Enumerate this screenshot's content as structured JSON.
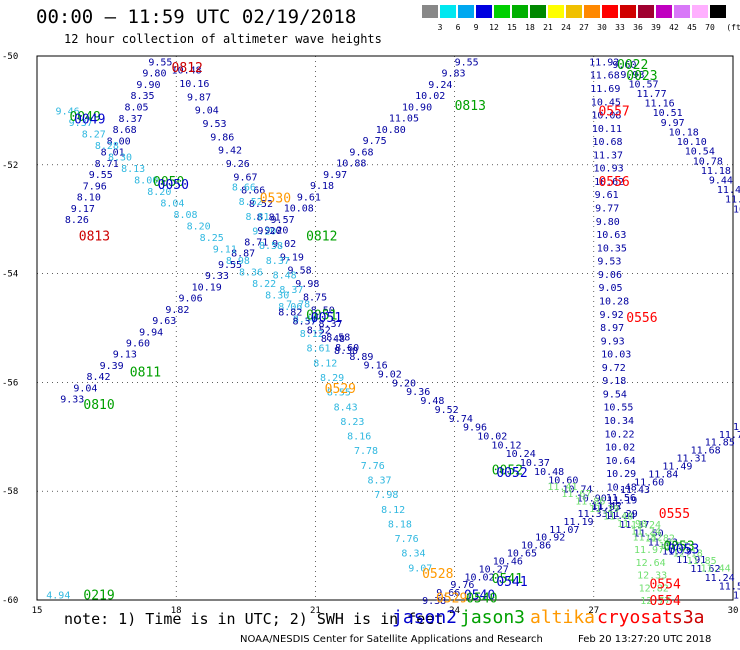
{
  "header": {
    "title": "00:00 – 11:59 UTC 02/19/2018",
    "subtitle": "12 hour collection of altimeter wave heights"
  },
  "legend": {
    "unit": "(ft)",
    "bins": [
      {
        "label": "3",
        "color": "#888888"
      },
      {
        "label": "6",
        "color": "#00e8f0"
      },
      {
        "label": "9",
        "color": "#00a8f0"
      },
      {
        "label": "12",
        "color": "#0000e0"
      },
      {
        "label": "15",
        "color": "#00d000"
      },
      {
        "label": "18",
        "color": "#00b000"
      },
      {
        "label": "21",
        "color": "#008800"
      },
      {
        "label": "24",
        "color": "#ffff00"
      },
      {
        "label": "27",
        "color": "#f0c000"
      },
      {
        "label": "30",
        "color": "#ff8800"
      },
      {
        "label": "33",
        "color": "#ff0000"
      },
      {
        "label": "36",
        "color": "#d00000"
      },
      {
        "label": "39",
        "color": "#a00030"
      },
      {
        "label": "42",
        "color": "#c000c0"
      },
      {
        "label": "45",
        "color": "#d878f8"
      },
      {
        "label": "70",
        "color": "#ffb0ff"
      },
      {
        "label": "",
        "color": "#000000"
      }
    ]
  },
  "chart_data": {
    "type": "map",
    "xlim": [
      15,
      30
    ],
    "ylim": [
      -60,
      -50
    ],
    "x_ticks": [
      "15",
      "18",
      "21",
      "24",
      "27",
      "30"
    ],
    "y_ticks": [
      "-50",
      "-52",
      "-54",
      "-56",
      "-58",
      "-60"
    ],
    "colors": {
      "jason2": "#0000cc",
      "jason3": "#00a000",
      "altika": "#ff9900",
      "cryosat": "#ff0000",
      "s3a": "#cc0000",
      "light": "#30b8e0",
      "pale": "#70e070",
      "dark": "#0000a0"
    },
    "times": [
      {
        "label": "0812",
        "x": 17.9,
        "y": -50.2,
        "color": "s3a"
      },
      {
        "label": "0049",
        "x": 15.7,
        "y": -51.1,
        "color": "jason3"
      },
      {
        "label": "0049",
        "x": 15.8,
        "y": -51.15,
        "color": "jason2"
      },
      {
        "label": "0050",
        "x": 17.5,
        "y": -52.3,
        "color": "jason3"
      },
      {
        "label": "0050",
        "x": 17.6,
        "y": -52.35,
        "color": "jason2"
      },
      {
        "label": "0813",
        "x": 15.9,
        "y": -53.3,
        "color": "s3a"
      },
      {
        "label": "0530",
        "x": 19.8,
        "y": -52.6,
        "color": "altika"
      },
      {
        "label": "0812",
        "x": 20.8,
        "y": -53.3,
        "color": "jason3"
      },
      {
        "label": "0051",
        "x": 20.8,
        "y": -54.75,
        "color": "jason3"
      },
      {
        "label": "0051",
        "x": 20.9,
        "y": -54.8,
        "color": "jason2"
      },
      {
        "label": "0811",
        "x": 17.0,
        "y": -55.8,
        "color": "jason3"
      },
      {
        "label": "0810",
        "x": 16.0,
        "y": -56.4,
        "color": "jason3"
      },
      {
        "label": "0529",
        "x": 21.2,
        "y": -56.1,
        "color": "altika"
      },
      {
        "label": "0813",
        "x": 24.0,
        "y": -50.9,
        "color": "jason3"
      },
      {
        "label": "0022",
        "x": 27.5,
        "y": -50.15,
        "color": "jason3"
      },
      {
        "label": "0023",
        "x": 27.7,
        "y": -50.35,
        "color": "jason3"
      },
      {
        "label": "0557",
        "x": 27.1,
        "y": -51.0,
        "color": "cryosat"
      },
      {
        "label": "0556",
        "x": 27.1,
        "y": -52.3,
        "color": "cryosat"
      },
      {
        "label": "0556",
        "x": 27.7,
        "y": -54.8,
        "color": "cryosat"
      },
      {
        "label": "0052",
        "x": 24.8,
        "y": -57.6,
        "color": "jason3"
      },
      {
        "label": "0052",
        "x": 24.9,
        "y": -57.65,
        "color": "jason2"
      },
      {
        "label": "0555",
        "x": 28.4,
        "y": -58.4,
        "color": "cryosat"
      },
      {
        "label": "0053",
        "x": 28.5,
        "y": -59.0,
        "color": "jason3"
      },
      {
        "label": "0053",
        "x": 28.6,
        "y": -59.05,
        "color": "jason2"
      },
      {
        "label": "0528",
        "x": 23.3,
        "y": -59.5,
        "color": "altika"
      },
      {
        "label": "0541",
        "x": 24.8,
        "y": -59.6,
        "color": "jason3"
      },
      {
        "label": "0541",
        "x": 24.9,
        "y": -59.65,
        "color": "jason2"
      },
      {
        "label": "0540",
        "x": 24.2,
        "y": -59.9,
        "color": "jason2"
      },
      {
        "label": "0540",
        "x": 24.25,
        "y": -59.95,
        "color": "jason3"
      },
      {
        "label": "0554",
        "x": 28.2,
        "y": -59.7,
        "color": "cryosat"
      },
      {
        "label": "0554",
        "x": 28.2,
        "y": -60.0,
        "color": "cryosat"
      },
      {
        "label": "0219",
        "x": 16.0,
        "y": -59.9,
        "color": "jason3"
      },
      {
        "label": "0529",
        "x": 23.6,
        "y": -59.95,
        "color": "altika"
      }
    ],
    "passes": [
      {
        "color": "dark",
        "from": [
          17.4,
          -50.1
        ],
        "to": [
          15.6,
          -53.0
        ],
        "values": [
          "9.55",
          "9.80",
          "9.90",
          "8.35",
          "8.05",
          "8.37",
          "8.68",
          "8.00",
          "8.01",
          "8.71",
          "9.55",
          "7.96",
          "8.10",
          "9.17",
          "8.26"
        ]
      },
      {
        "color": "dark",
        "from": [
          17.9,
          -50.25
        ],
        "to": [
          21.4,
          -55.4
        ],
        "values": [
          "10.48",
          "10.16",
          "9.87",
          "9.04",
          "9.53",
          "9.86",
          "9.42",
          "9.26",
          "9.67",
          "8.66",
          "8.52",
          "8.81",
          "9.20",
          "9.02",
          "9.19",
          "9.58",
          "9.98",
          "8.75",
          "8.50",
          "8.37",
          "8.58",
          "8.30"
        ]
      },
      {
        "color": "light",
        "from": [
          19.2,
          -52.4
        ],
        "to": [
          23.0,
          -59.4
        ],
        "values": [
          "8.66",
          "8.52",
          "8.81",
          "9.20",
          "8.58",
          "8.37",
          "8.48",
          "8.37",
          "7.78",
          "8.40",
          "8.12",
          "8.61",
          "8.12",
          "8.29",
          "8.55",
          "8.43",
          "8.23",
          "8.16",
          "7.78",
          "7.76",
          "8.37",
          "7.98",
          "8.12",
          "8.18",
          "7.76",
          "8.34",
          "9.07"
        ]
      },
      {
        "color": "dark",
        "from": [
          15.5,
          -56.3
        ],
        "to": [
          24.0,
          -50.1
        ],
        "values": [
          "9.33",
          "9.04",
          "8.42",
          "9.39",
          "9.13",
          "9.60",
          "9.94",
          "9.63",
          "9.82",
          "9.06",
          "10.19",
          "9.33",
          "9.55",
          "8.87",
          "8.71",
          "9.20",
          "9.57",
          "10.08",
          "9.61",
          "9.18",
          "9.97",
          "10.88",
          "9.68",
          "9.75",
          "10.80",
          "11.05",
          "10.90",
          "10.02",
          "9.24",
          "9.83",
          "9.55"
        ]
      },
      {
        "color": "light",
        "from": [
          15.4,
          -51.0
        ],
        "to": [
          20.2,
          -54.6
        ],
        "values": [
          "9.46",
          "9.37",
          "8.27",
          "8.28",
          "8.30",
          "8.13",
          "8.00",
          "8.20",
          "8.04",
          "8.08",
          "8.20",
          "8.25",
          "9.11",
          "8.98",
          "8.36",
          "8.22",
          "8.30",
          "8.06"
        ]
      },
      {
        "color": "dark",
        "from": [
          20.2,
          -54.7
        ],
        "to": [
          30.0,
          -59.9
        ],
        "values": [
          "8.82",
          "8.37",
          "8.52",
          "8.48",
          "8.60",
          "8.89",
          "9.16",
          "9.02",
          "9.20",
          "9.36",
          "9.48",
          "9.52",
          "9.74",
          "9.96",
          "10.02",
          "10.12",
          "10.24",
          "10.37",
          "10.48",
          "10.60",
          "10.74",
          "10.90",
          "11.05",
          "11.24",
          "11.37",
          "11.50",
          "11.63",
          "11.79",
          "11.91",
          "11.62",
          "11.24",
          "11.56",
          "11.81"
        ]
      },
      {
        "color": "dark",
        "from": [
          26.9,
          -50.1
        ],
        "to": [
          27.3,
          -58.4
        ],
        "values": [
          "11.92",
          "11.68",
          "11.69",
          "10.45",
          "10.08",
          "10.11",
          "10.68",
          "11.37",
          "10.93",
          "10.62",
          "9.61",
          "9.77",
          "9.80",
          "10.63",
          "10.35",
          "9.53",
          "9.06",
          "9.05",
          "10.28",
          "9.92",
          "8.97",
          "9.93",
          "10.03",
          "9.72",
          "9.18",
          "9.54",
          "10.55",
          "10.34",
          "10.22",
          "10.02",
          "10.64",
          "10.29",
          "10.48",
          "11.19",
          "11.29"
        ]
      },
      {
        "color": "dark",
        "from": [
          27.4,
          -50.15
        ],
        "to": [
          30.0,
          -52.8
        ],
        "values": [
          "9.60",
          "9.93",
          "10.57",
          "11.77",
          "11.16",
          "10.51",
          "9.97",
          "10.18",
          "10.10",
          "10.54",
          "10.78",
          "11.18",
          "9.44",
          "11.42",
          "11.16",
          "10"
        ]
      },
      {
        "color": "dark",
        "from": [
          23.3,
          -60.0
        ],
        "to": [
          30.0,
          -56.8
        ],
        "values": [
          "9.38",
          "9.66",
          "9.76",
          "10.02",
          "10.27",
          "10.46",
          "10.65",
          "10.86",
          "10.92",
          "11.07",
          "11.19",
          "11.33",
          "11.42",
          "11.56",
          "11.43",
          "11.60",
          "11.84",
          "11.49",
          "11.31",
          "11.68",
          "11.85",
          "11.73",
          "11.93"
        ]
      },
      {
        "color": "pale",
        "from": [
          26.0,
          -57.9
        ],
        "to": [
          29.3,
          -59.4
        ],
        "values": [
          "11.41",
          "11.67",
          "11.86",
          "11.29",
          "11.48",
          "11.90",
          "11.24",
          "11.82",
          "11.97",
          "12.18",
          "11.85",
          "11.44"
        ]
      },
      {
        "color": "pale",
        "from": [
          27.8,
          -58.6
        ],
        "to": [
          28.0,
          -60.0
        ],
        "values": [
          "11.24",
          "11.82",
          "11.97",
          "12.64",
          "12.33",
          "12.82",
          "12.77"
        ]
      }
    ],
    "stray": [
      {
        "label": "4.94",
        "x": 15.2,
        "y": -59.9,
        "color": "light"
      }
    ]
  },
  "note": "note:  1) Time is in UTC;  2) SWH is in feet",
  "satellites": [
    {
      "name": "jason2",
      "color": "#0000cc"
    },
    {
      "name": "jason3",
      "color": "#00a000"
    },
    {
      "name": "altika",
      "color": "#ff9900"
    },
    {
      "name": "cryosat",
      "color": "#ff0000"
    },
    {
      "name": "s3a",
      "color": "#cc0000"
    }
  ],
  "credit": "NOAA/NESDIS Center for Satellite Applications and Research",
  "timestamp": "Feb 20 13:27:20 UTC 2018"
}
